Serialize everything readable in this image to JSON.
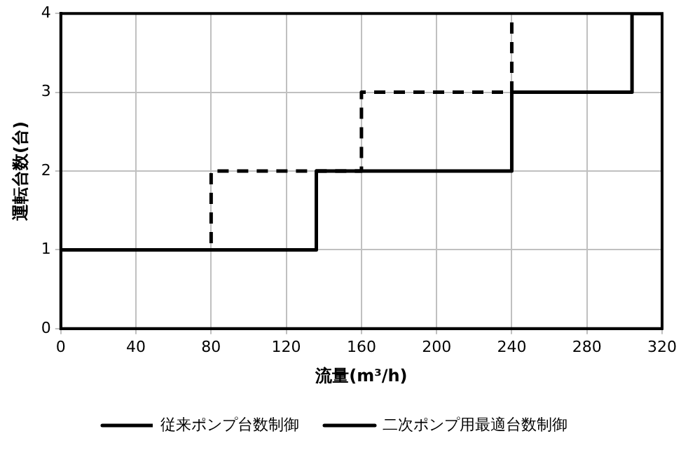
{
  "chart_data": {
    "type": "step",
    "xlabel": "流量(m³/h)",
    "ylabel": "運転台数(台)",
    "xlim": [
      0,
      320
    ],
    "xticks": [
      0,
      40,
      80,
      120,
      160,
      200,
      240,
      280,
      320
    ],
    "ylim": [
      0,
      4
    ],
    "yticks": [
      0,
      1,
      2,
      3,
      4
    ],
    "grid": true,
    "legend": "bottom",
    "marker": "none",
    "series": [
      {
        "name": "従来ポンプ台数制御",
        "color": "#000000",
        "line_style": "dashed",
        "x": [
          0,
          80,
          160,
          240
        ],
        "values": [
          1,
          2,
          3,
          4
        ]
      },
      {
        "name": "二次ポンプ用最適台数制御",
        "color": "#000000",
        "line_style": "solid",
        "x": [
          0,
          136,
          240,
          304,
          320
        ],
        "values": [
          1,
          2,
          3,
          4,
          4
        ]
      }
    ]
  }
}
